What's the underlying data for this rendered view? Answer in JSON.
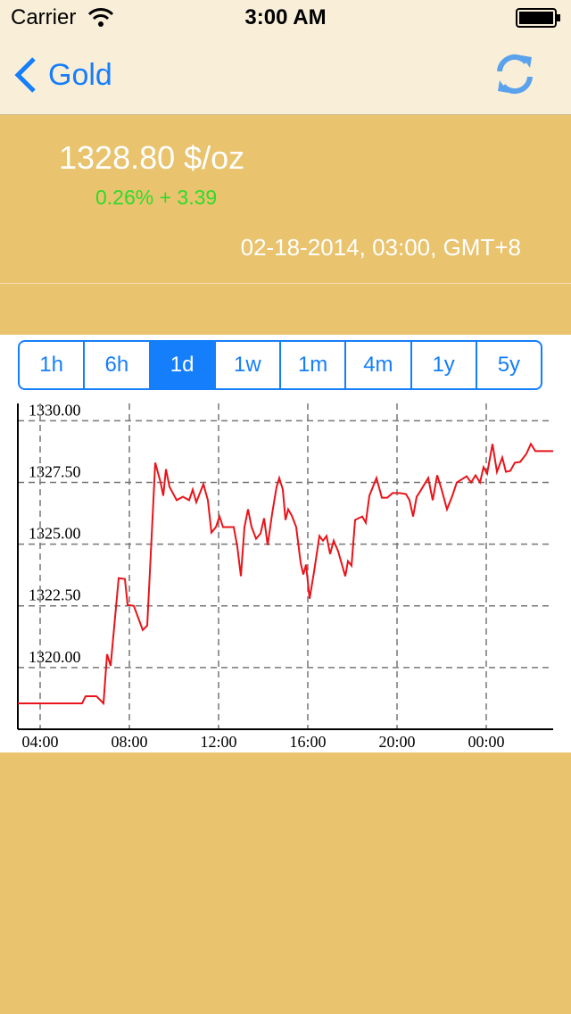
{
  "status_bar": {
    "carrier": "Carrier",
    "time": "3:00 AM"
  },
  "nav": {
    "back": "Gold"
  },
  "quote": {
    "price": "1328.80 $/oz",
    "change": "0.26% + 3.39",
    "timestamp": "02-18-2014, 03:00, GMT+8"
  },
  "ranges": {
    "options": [
      "1h",
      "6h",
      "1d",
      "1w",
      "1m",
      "4m",
      "1y",
      "5y"
    ],
    "selected": "1d"
  },
  "chart_data": {
    "type": "line",
    "color": "#e8141a",
    "grid": true,
    "x": [
      3.0,
      5.88,
      6.04,
      6.52,
      6.84,
      7.0,
      7.16,
      7.52,
      7.8,
      7.92,
      8.2,
      8.6,
      8.8,
      9.0,
      9.16,
      9.4,
      9.52,
      9.64,
      9.8,
      10.12,
      10.4,
      10.68,
      10.84,
      11.0,
      11.32,
      11.52,
      11.68,
      11.88,
      12.04,
      12.2,
      12.68,
      12.84,
      13.0,
      13.16,
      13.32,
      13.48,
      13.68,
      13.88,
      14.04,
      14.2,
      14.4,
      14.6,
      14.72,
      14.88,
      15.0,
      15.12,
      15.28,
      15.48,
      15.68,
      15.8,
      15.92,
      16.08,
      16.28,
      16.52,
      16.68,
      16.84,
      17.0,
      17.16,
      17.36,
      17.68,
      17.8,
      17.96,
      18.12,
      18.44,
      18.6,
      18.76,
      19.08,
      19.32,
      19.56,
      19.8,
      20.12,
      20.4,
      20.56,
      20.72,
      20.88,
      21.04,
      21.4,
      21.6,
      21.8,
      22.0,
      22.24,
      22.48,
      22.68,
      23.12,
      23.32,
      23.52,
      23.72,
      23.88,
      24.04,
      24.28,
      24.48,
      24.72,
      24.88,
      25.08,
      25.28,
      25.52,
      25.8,
      26.0,
      26.2,
      27.0
    ],
    "values": [
      1318.55,
      1318.55,
      1318.84,
      1318.84,
      1318.55,
      1320.54,
      1320.07,
      1323.62,
      1323.59,
      1322.54,
      1322.5,
      1321.52,
      1321.7,
      1325.33,
      1328.3,
      1327.5,
      1326.96,
      1328.04,
      1327.32,
      1326.78,
      1326.92,
      1326.78,
      1327.21,
      1326.7,
      1327.43,
      1326.78,
      1325.47,
      1325.69,
      1326.12,
      1325.69,
      1325.69,
      1324.89,
      1323.7,
      1325.69,
      1326.41,
      1325.69,
      1325.22,
      1325.43,
      1326.05,
      1324.96,
      1326.23,
      1327.32,
      1327.68,
      1327.21,
      1325.98,
      1326.41,
      1326.16,
      1325.69,
      1324.24,
      1323.77,
      1324.17,
      1322.79,
      1323.88,
      1325.33,
      1325.14,
      1325.33,
      1324.6,
      1325.14,
      1324.71,
      1323.7,
      1324.31,
      1324.13,
      1325.98,
      1326.12,
      1325.87,
      1326.96,
      1327.68,
      1326.88,
      1326.88,
      1327.07,
      1327.07,
      1327.03,
      1326.78,
      1326.12,
      1326.92,
      1327.14,
      1327.68,
      1326.78,
      1327.79,
      1327.21,
      1326.41,
      1326.96,
      1327.5,
      1327.75,
      1327.5,
      1327.79,
      1327.5,
      1328.12,
      1327.86,
      1329.06,
      1327.93,
      1328.51,
      1327.93,
      1327.97,
      1328.3,
      1328.33,
      1328.66,
      1329.06,
      1328.77,
      1328.77
    ],
    "xlim": [
      3,
      27
    ],
    "ylim": [
      1317.5,
      1330.7
    ],
    "xticks": [
      {
        "value": 4,
        "label": "04:00"
      },
      {
        "value": 8,
        "label": "08:00"
      },
      {
        "value": 12,
        "label": "12:00"
      },
      {
        "value": 16,
        "label": "16:00"
      },
      {
        "value": 20,
        "label": "20:00"
      },
      {
        "value": 24,
        "label": "00:00"
      }
    ],
    "yticks": [
      {
        "value": 1320,
        "label": "1320.00"
      },
      {
        "value": 1322.5,
        "label": "1322.50"
      },
      {
        "value": 1325,
        "label": "1325.00"
      },
      {
        "value": 1327.5,
        "label": "1327.50"
      },
      {
        "value": 1330,
        "label": "1330.00"
      }
    ]
  }
}
